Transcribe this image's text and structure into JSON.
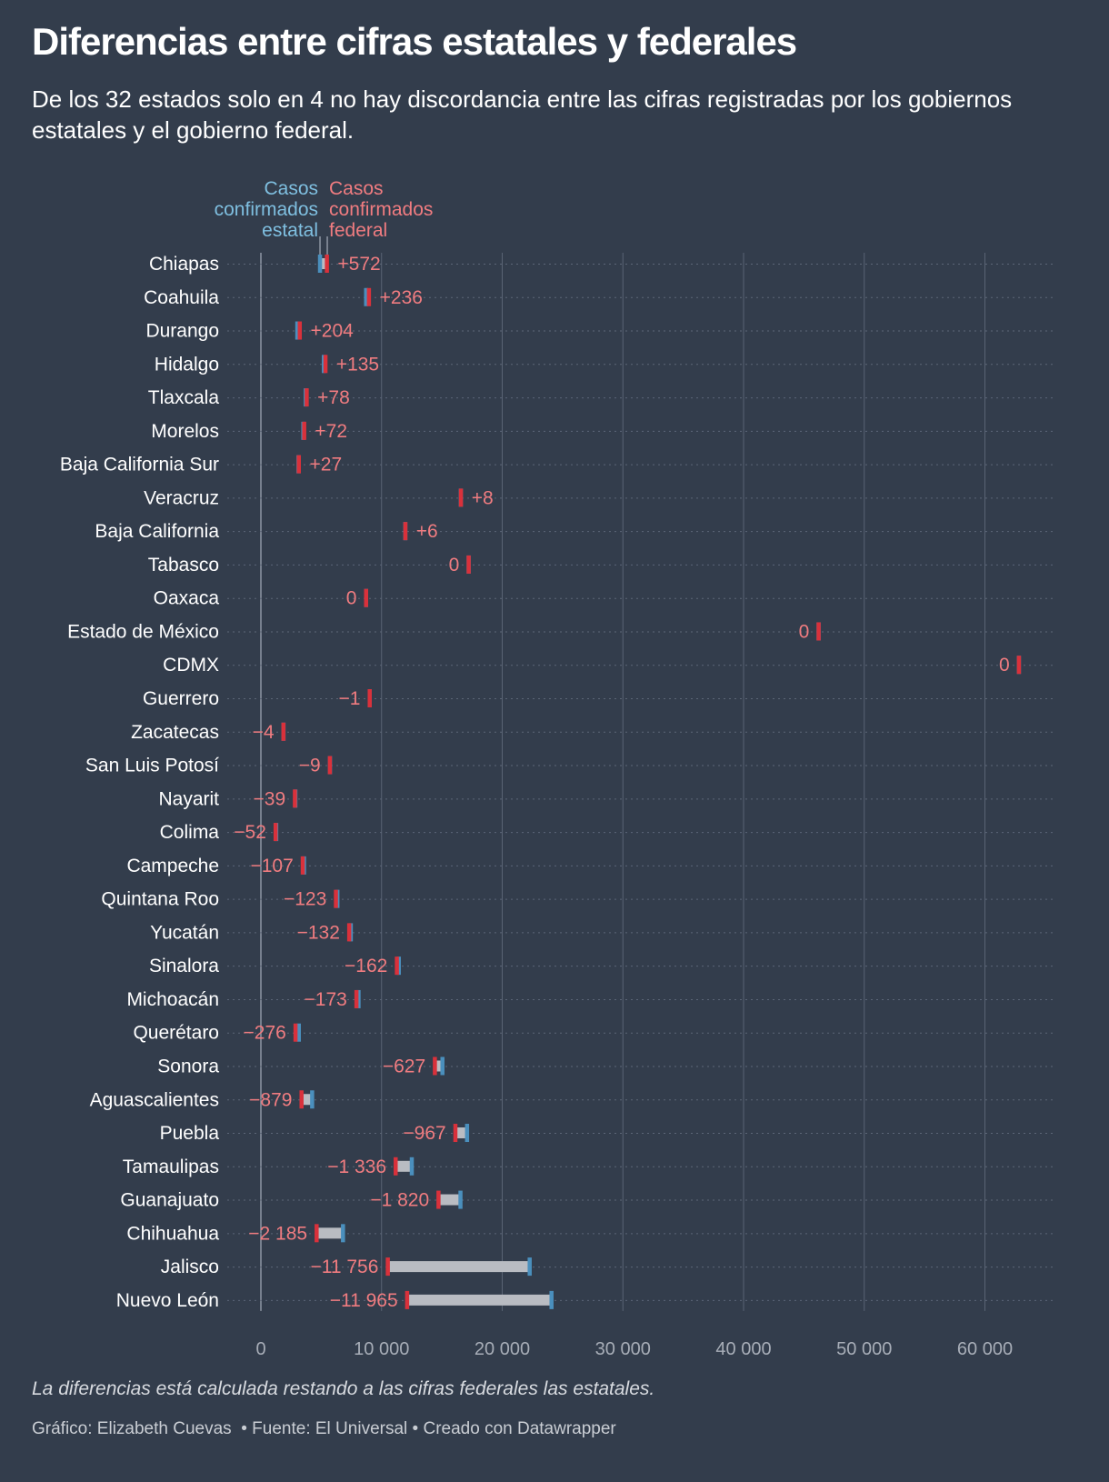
{
  "title": "Diferencias entre cifras estatales y federales",
  "subtitle": "De los 32 estados solo en 4 no hay discordancia entre las cifras registradas por los gobiernos estatales y el gobierno federal.",
  "note": "La diferencias está calculada restando a las cifras federales las estatales.",
  "credits": {
    "author": "Gráfico: Elizabeth Cuevas",
    "sep1": "  • ",
    "source": "Fuente: El Universal",
    "sep2": " • ",
    "tool": "Creado con Datawrapper"
  },
  "colors": {
    "background": "#333d4c",
    "estatal": "#4a8fbd",
    "federal": "#d9313b",
    "estatal_label": "#7fbfe0",
    "federal_label": "#f07c80",
    "range_bar": "#b9bcc2",
    "grid": "#5a6474"
  },
  "chart_data": {
    "type": "range-plot",
    "xlim": [
      0,
      65000
    ],
    "x_ticks": [
      0,
      10000,
      20000,
      30000,
      40000,
      50000,
      60000
    ],
    "x_tick_labels": [
      "0",
      "10 000",
      "20 000",
      "30 000",
      "40 000",
      "50 000",
      "60 000"
    ],
    "legend": {
      "estatal": [
        "Casos",
        "confirmados",
        "estatal"
      ],
      "federal": [
        "Casos",
        "confirmados",
        "federal"
      ]
    },
    "rows": [
      {
        "state": "Chiapas",
        "estatal": 4880,
        "federal": 5452,
        "label": "+572"
      },
      {
        "state": "Coahuila",
        "estatal": 8700,
        "federal": 8936,
        "label": "+236"
      },
      {
        "state": "Durango",
        "estatal": 3000,
        "federal": 3204,
        "label": "+204"
      },
      {
        "state": "Hidalgo",
        "estatal": 5200,
        "federal": 5335,
        "label": "+135"
      },
      {
        "state": "Tlaxcala",
        "estatal": 3700,
        "federal": 3778,
        "label": "+78"
      },
      {
        "state": "Morelos",
        "estatal": 3500,
        "federal": 3572,
        "label": "+72"
      },
      {
        "state": "Baja California Sur",
        "estatal": 3100,
        "federal": 3127,
        "label": "+27"
      },
      {
        "state": "Veracruz",
        "estatal": 16550,
        "federal": 16558,
        "label": "+8"
      },
      {
        "state": "Baja California",
        "estatal": 11950,
        "federal": 11956,
        "label": "+6"
      },
      {
        "state": "Tabasco",
        "estatal": 17200,
        "federal": 17200,
        "label": "0"
      },
      {
        "state": "Oaxaca",
        "estatal": 8700,
        "federal": 8700,
        "label": "0"
      },
      {
        "state": "Estado de México",
        "estatal": 46200,
        "federal": 46200,
        "label": "0"
      },
      {
        "state": "CDMX",
        "estatal": 62800,
        "federal": 62800,
        "label": "0"
      },
      {
        "state": "Guerrero",
        "estatal": 9001,
        "federal": 9000,
        "label": "−1"
      },
      {
        "state": "Zacatecas",
        "estatal": 1854,
        "federal": 1850,
        "label": "−4"
      },
      {
        "state": "San Luis Potosí",
        "estatal": 5709,
        "federal": 5700,
        "label": "−9"
      },
      {
        "state": "Nayarit",
        "estatal": 2839,
        "federal": 2800,
        "label": "−39"
      },
      {
        "state": "Colima",
        "estatal": 1252,
        "federal": 1200,
        "label": "−52"
      },
      {
        "state": "Campeche",
        "estatal": 3557,
        "federal": 3450,
        "label": "−107"
      },
      {
        "state": "Quintana Roo",
        "estatal": 6323,
        "federal": 6200,
        "label": "−123"
      },
      {
        "state": "Yucatán",
        "estatal": 7432,
        "federal": 7300,
        "label": "−132"
      },
      {
        "state": "Sinalora",
        "estatal": 11412,
        "federal": 11250,
        "label": "−162"
      },
      {
        "state": "Michoacán",
        "estatal": 8073,
        "federal": 7900,
        "label": "−173"
      },
      {
        "state": "Querétaro",
        "estatal": 3126,
        "federal": 2850,
        "label": "−276"
      },
      {
        "state": "Sonora",
        "estatal": 15027,
        "federal": 14400,
        "label": "−627"
      },
      {
        "state": "Aguascalientes",
        "estatal": 4229,
        "federal": 3350,
        "label": "−879"
      },
      {
        "state": "Puebla",
        "estatal": 17067,
        "federal": 16100,
        "label": "−967"
      },
      {
        "state": "Tamaulipas",
        "estatal": 12486,
        "federal": 11150,
        "label": "−1 336"
      },
      {
        "state": "Guanajuato",
        "estatal": 16520,
        "federal": 14700,
        "label": "−1 820"
      },
      {
        "state": "Chihuahua",
        "estatal": 6785,
        "federal": 4600,
        "label": "−2 185"
      },
      {
        "state": "Jalisco",
        "estatal": 22256,
        "federal": 10500,
        "label": "−11 756"
      },
      {
        "state": "Nuevo León",
        "estatal": 24065,
        "federal": 12100,
        "label": "−11 965"
      }
    ]
  }
}
